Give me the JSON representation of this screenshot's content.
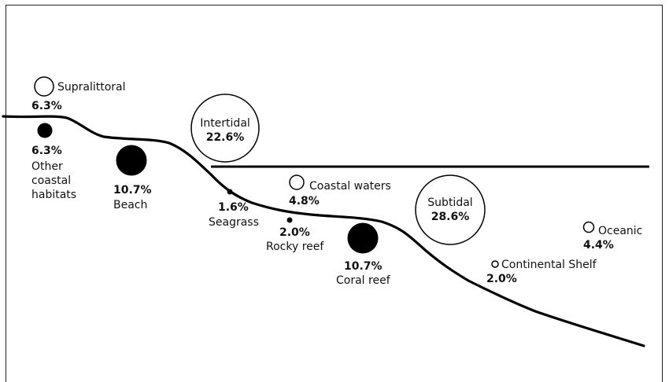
{
  "habitats": [
    {
      "key": "supralittoral",
      "label": "Supralittoral",
      "value": "6.3%"
    },
    {
      "key": "other_coastal",
      "label_lines": [
        "Other",
        "coastal",
        "habitats"
      ],
      "value": "6.3%"
    },
    {
      "key": "beach",
      "label": "Beach",
      "value": "10.7%"
    },
    {
      "key": "intertidal",
      "label": "Intertidal",
      "value": "22.6%"
    },
    {
      "key": "seagrass",
      "label": "Seagrass",
      "value": "1.6%"
    },
    {
      "key": "coastal_waters",
      "label": "Coastal waters",
      "value": "4.8%"
    },
    {
      "key": "rocky_reef",
      "label": "Rocky reef",
      "value": "2.0%"
    },
    {
      "key": "coral_reef",
      "label": "Coral reef",
      "value": "10.7%"
    },
    {
      "key": "subtidal",
      "label": "Subtidal",
      "value": "28.6%"
    },
    {
      "key": "continental_shelf",
      "label": "Continental Shelf",
      "value": "2.0%"
    },
    {
      "key": "oceanic",
      "label": "Oceanic",
      "value": "4.4%"
    }
  ]
}
